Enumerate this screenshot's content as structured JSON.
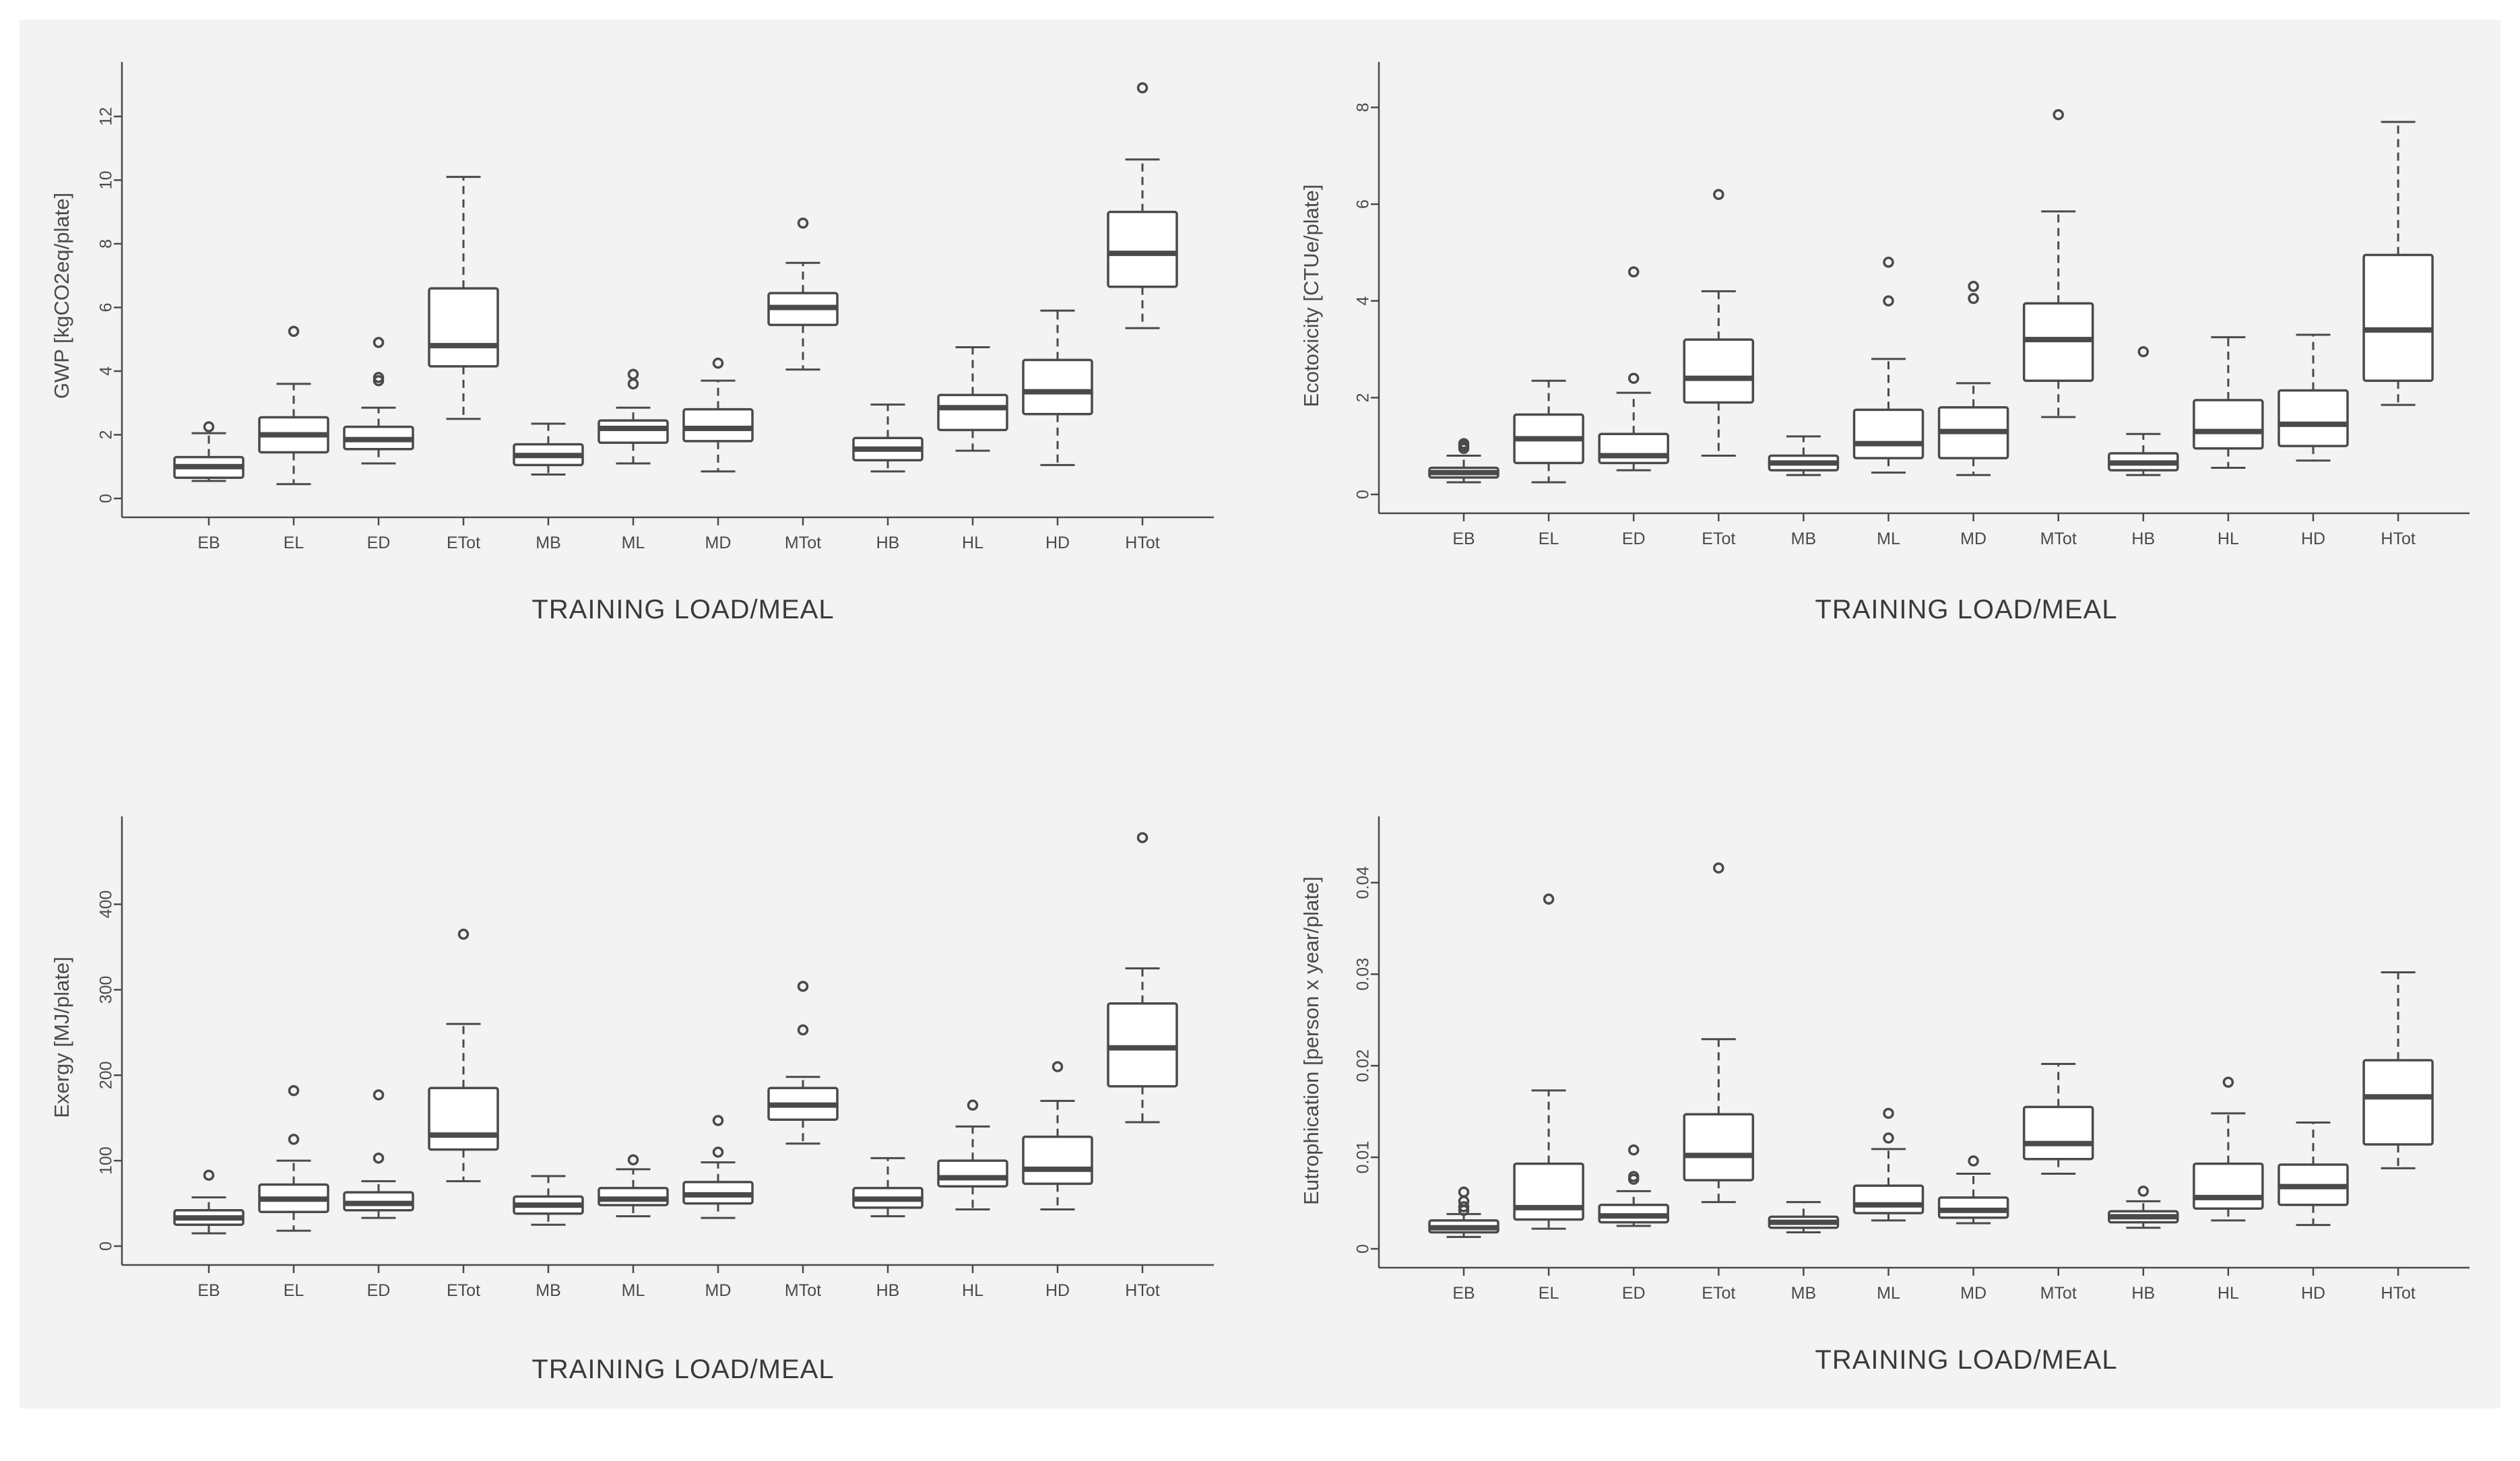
{
  "colors": {
    "background": "#f3f3f3",
    "ink": "#4a4a4a",
    "box_fill": "#ffffff"
  },
  "chart_data": [
    {
      "type": "box",
      "title": "",
      "xlabel": "TRAINING LOAD/MEAL",
      "ylabel": "GWP [kgCO2eq/plate]",
      "categories": [
        "EB",
        "EL",
        "ED",
        "ETot",
        "MB",
        "ML",
        "MD",
        "MTot",
        "HB",
        "HL",
        "HD",
        "HTot"
      ],
      "ylim": [
        0,
        13.5
      ],
      "yticks": [
        0,
        2,
        4,
        6,
        8,
        10,
        12
      ],
      "ytick_labels": [
        "0",
        "2",
        "4",
        "6",
        "8",
        "10",
        "12"
      ],
      "boxes": [
        {
          "min": 0.55,
          "q1": 0.65,
          "median": 1.0,
          "q3": 1.3,
          "max": 2.05,
          "outliers": [
            2.25
          ]
        },
        {
          "min": 0.45,
          "q1": 1.45,
          "median": 2.0,
          "q3": 2.55,
          "max": 3.6,
          "outliers": [
            5.25
          ]
        },
        {
          "min": 1.1,
          "q1": 1.55,
          "median": 1.85,
          "q3": 2.25,
          "max": 2.85,
          "outliers": [
            3.7,
            3.8,
            4.9
          ]
        },
        {
          "min": 2.5,
          "q1": 4.15,
          "median": 4.8,
          "q3": 6.6,
          "max": 10.1,
          "outliers": []
        },
        {
          "min": 0.75,
          "q1": 1.05,
          "median": 1.35,
          "q3": 1.7,
          "max": 2.35,
          "outliers": []
        },
        {
          "min": 1.1,
          "q1": 1.75,
          "median": 2.2,
          "q3": 2.45,
          "max": 2.85,
          "outliers": [
            3.6,
            3.9
          ]
        },
        {
          "min": 0.85,
          "q1": 1.8,
          "median": 2.2,
          "q3": 2.8,
          "max": 3.7,
          "outliers": [
            4.25
          ]
        },
        {
          "min": 4.05,
          "q1": 5.45,
          "median": 6.0,
          "q3": 6.45,
          "max": 7.4,
          "outliers": [
            8.65
          ]
        },
        {
          "min": 0.85,
          "q1": 1.2,
          "median": 1.55,
          "q3": 1.9,
          "max": 2.95,
          "outliers": []
        },
        {
          "min": 1.5,
          "q1": 2.15,
          "median": 2.85,
          "q3": 3.25,
          "max": 4.75,
          "outliers": []
        },
        {
          "min": 1.05,
          "q1": 2.65,
          "median": 3.35,
          "q3": 4.35,
          "max": 5.9,
          "outliers": []
        },
        {
          "min": 5.35,
          "q1": 6.65,
          "median": 7.7,
          "q3": 9.0,
          "max": 10.65,
          "outliers": [
            12.9
          ]
        }
      ]
    },
    {
      "type": "box",
      "title": "",
      "xlabel": "TRAINING LOAD/MEAL",
      "ylabel": "Ecotoxicity [CTUe/plate]",
      "categories": [
        "EB",
        "EL",
        "ED",
        "ETot",
        "MB",
        "ML",
        "MD",
        "MTot",
        "HB",
        "HL",
        "HD",
        "HTot"
      ],
      "ylim": [
        0,
        8.8
      ],
      "yticks": [
        0,
        2,
        4,
        6,
        8
      ],
      "ytick_labels": [
        "0",
        "2",
        "4",
        "6",
        "8"
      ],
      "boxes": [
        {
          "min": 0.25,
          "q1": 0.35,
          "median": 0.45,
          "q3": 0.55,
          "max": 0.8,
          "outliers": [
            0.95,
            1.0,
            1.05
          ]
        },
        {
          "min": 0.25,
          "q1": 0.65,
          "median": 1.15,
          "q3": 1.65,
          "max": 2.35,
          "outliers": []
        },
        {
          "min": 0.5,
          "q1": 0.65,
          "median": 0.8,
          "q3": 1.25,
          "max": 2.1,
          "outliers": [
            2.4,
            4.6
          ]
        },
        {
          "min": 0.8,
          "q1": 1.9,
          "median": 2.4,
          "q3": 3.2,
          "max": 4.2,
          "outliers": [
            6.2
          ]
        },
        {
          "min": 0.4,
          "q1": 0.5,
          "median": 0.65,
          "q3": 0.8,
          "max": 1.2,
          "outliers": []
        },
        {
          "min": 0.45,
          "q1": 0.75,
          "median": 1.05,
          "q3": 1.75,
          "max": 2.8,
          "outliers": [
            4.0,
            4.8
          ]
        },
        {
          "min": 0.4,
          "q1": 0.75,
          "median": 1.3,
          "q3": 1.8,
          "max": 2.3,
          "outliers": [
            4.05,
            4.3
          ]
        },
        {
          "min": 1.6,
          "q1": 2.35,
          "median": 3.2,
          "q3": 3.95,
          "max": 5.85,
          "outliers": [
            7.85
          ]
        },
        {
          "min": 0.4,
          "q1": 0.5,
          "median": 0.65,
          "q3": 0.85,
          "max": 1.25,
          "outliers": [
            2.95
          ]
        },
        {
          "min": 0.55,
          "q1": 0.95,
          "median": 1.3,
          "q3": 1.95,
          "max": 3.25,
          "outliers": []
        },
        {
          "min": 0.7,
          "q1": 1.0,
          "median": 1.45,
          "q3": 2.15,
          "max": 3.3,
          "outliers": []
        },
        {
          "min": 1.85,
          "q1": 2.35,
          "median": 3.4,
          "q3": 4.95,
          "max": 7.7,
          "outliers": []
        }
      ]
    },
    {
      "type": "box",
      "title": "",
      "xlabel": "TRAINING LOAD/MEAL",
      "ylabel": "Exergy [MJ/plate]",
      "categories": [
        "EB",
        "EL",
        "ED",
        "ETot",
        "MB",
        "ML",
        "MD",
        "MTot",
        "HB",
        "HL",
        "HD",
        "HTot"
      ],
      "ylim": [
        0,
        495
      ],
      "yticks": [
        0,
        100,
        200,
        300,
        400
      ],
      "ytick_labels": [
        "0",
        "100",
        "200",
        "300",
        "400"
      ],
      "boxes": [
        {
          "min": 15,
          "q1": 25,
          "median": 33,
          "q3": 42,
          "max": 57,
          "outliers": [
            83
          ]
        },
        {
          "min": 18,
          "q1": 40,
          "median": 55,
          "q3": 72,
          "max": 100,
          "outliers": [
            125,
            182
          ]
        },
        {
          "min": 33,
          "q1": 42,
          "median": 50,
          "q3": 63,
          "max": 76,
          "outliers": [
            103,
            177
          ]
        },
        {
          "min": 76,
          "q1": 113,
          "median": 130,
          "q3": 185,
          "max": 260,
          "outliers": [
            365
          ]
        },
        {
          "min": 25,
          "q1": 38,
          "median": 48,
          "q3": 58,
          "max": 82,
          "outliers": []
        },
        {
          "min": 35,
          "q1": 48,
          "median": 55,
          "q3": 68,
          "max": 90,
          "outliers": [
            101
          ]
        },
        {
          "min": 33,
          "q1": 50,
          "median": 60,
          "q3": 75,
          "max": 98,
          "outliers": [
            110,
            147
          ]
        },
        {
          "min": 120,
          "q1": 148,
          "median": 165,
          "q3": 185,
          "max": 198,
          "outliers": [
            253,
            304
          ]
        },
        {
          "min": 35,
          "q1": 45,
          "median": 55,
          "q3": 68,
          "max": 103,
          "outliers": []
        },
        {
          "min": 43,
          "q1": 70,
          "median": 80,
          "q3": 100,
          "max": 140,
          "outliers": [
            165
          ]
        },
        {
          "min": 43,
          "q1": 73,
          "median": 90,
          "q3": 128,
          "max": 170,
          "outliers": [
            210
          ]
        },
        {
          "min": 145,
          "q1": 187,
          "median": 232,
          "q3": 284,
          "max": 325,
          "outliers": [
            478
          ]
        }
      ]
    },
    {
      "type": "box",
      "title": "",
      "xlabel": "TRAINING LOAD/MEAL",
      "ylabel": "Eutrophication [person x year/plate]",
      "categories": [
        "EB",
        "EL",
        "ED",
        "ETot",
        "MB",
        "ML",
        "MD",
        "MTot",
        "HB",
        "HL",
        "HD",
        "HTot"
      ],
      "ylim": [
        0,
        0.0465
      ],
      "yticks": [
        0,
        0.01,
        0.02,
        0.03,
        0.04
      ],
      "ytick_labels": [
        "0",
        "0.01",
        "0.02",
        "0.03",
        "0.04"
      ],
      "boxes": [
        {
          "min": 0.0013,
          "q1": 0.0018,
          "median": 0.0023,
          "q3": 0.0031,
          "max": 0.0038,
          "outliers": [
            0.0042,
            0.0046,
            0.0052,
            0.0062
          ]
        },
        {
          "min": 0.0022,
          "q1": 0.0032,
          "median": 0.0045,
          "q3": 0.0093,
          "max": 0.0173,
          "outliers": [
            0.0382
          ]
        },
        {
          "min": 0.0025,
          "q1": 0.0029,
          "median": 0.0036,
          "q3": 0.0048,
          "max": 0.0063,
          "outliers": [
            0.0076,
            0.0079,
            0.0108
          ]
        },
        {
          "min": 0.0051,
          "q1": 0.0075,
          "median": 0.0102,
          "q3": 0.0147,
          "max": 0.0229,
          "outliers": [
            0.0416
          ]
        },
        {
          "min": 0.0018,
          "q1": 0.0023,
          "median": 0.0029,
          "q3": 0.0035,
          "max": 0.0051,
          "outliers": []
        },
        {
          "min": 0.0031,
          "q1": 0.0039,
          "median": 0.0048,
          "q3": 0.0069,
          "max": 0.0109,
          "outliers": [
            0.0121,
            0.0148
          ]
        },
        {
          "min": 0.0028,
          "q1": 0.0034,
          "median": 0.0042,
          "q3": 0.0056,
          "max": 0.0082,
          "outliers": [
            0.0096
          ]
        },
        {
          "min": 0.0082,
          "q1": 0.0098,
          "median": 0.0115,
          "q3": 0.0155,
          "max": 0.0202,
          "outliers": []
        },
        {
          "min": 0.0023,
          "q1": 0.0029,
          "median": 0.0035,
          "q3": 0.0041,
          "max": 0.0052,
          "outliers": [
            0.0063
          ]
        },
        {
          "min": 0.0031,
          "q1": 0.0044,
          "median": 0.0056,
          "q3": 0.0093,
          "max": 0.0148,
          "outliers": [
            0.0182
          ]
        },
        {
          "min": 0.0026,
          "q1": 0.0048,
          "median": 0.0068,
          "q3": 0.0092,
          "max": 0.0138,
          "outliers": []
        },
        {
          "min": 0.0088,
          "q1": 0.0114,
          "median": 0.0166,
          "q3": 0.0206,
          "max": 0.0302,
          "outliers": []
        }
      ]
    }
  ]
}
